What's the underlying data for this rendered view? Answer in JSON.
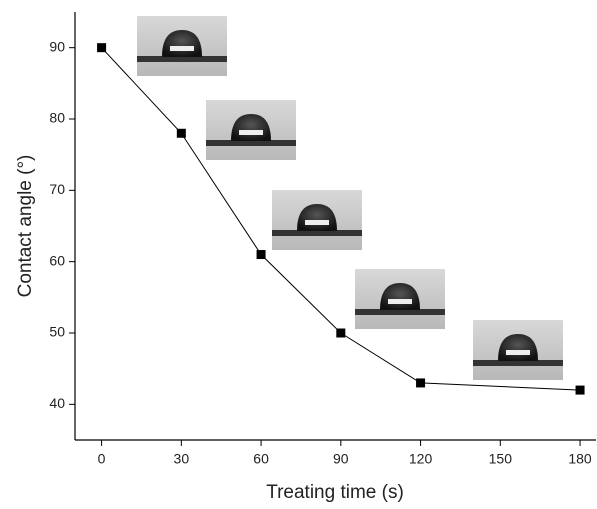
{
  "chart_data": {
    "type": "line",
    "x_label": "Treating time (s)",
    "y_label": "Contact angle (°)",
    "x": [
      0,
      30,
      60,
      90,
      120,
      180
    ],
    "series": [
      {
        "color": "#000000",
        "values": [
          90,
          78,
          61,
          50,
          43,
          42
        ]
      }
    ],
    "xlim": [
      -10,
      186
    ],
    "xticks": [
      0,
      30,
      60,
      90,
      120,
      150,
      180
    ],
    "ylim": [
      35,
      95
    ],
    "yticks": [
      40,
      50,
      60,
      70,
      80,
      90
    ]
  }
}
